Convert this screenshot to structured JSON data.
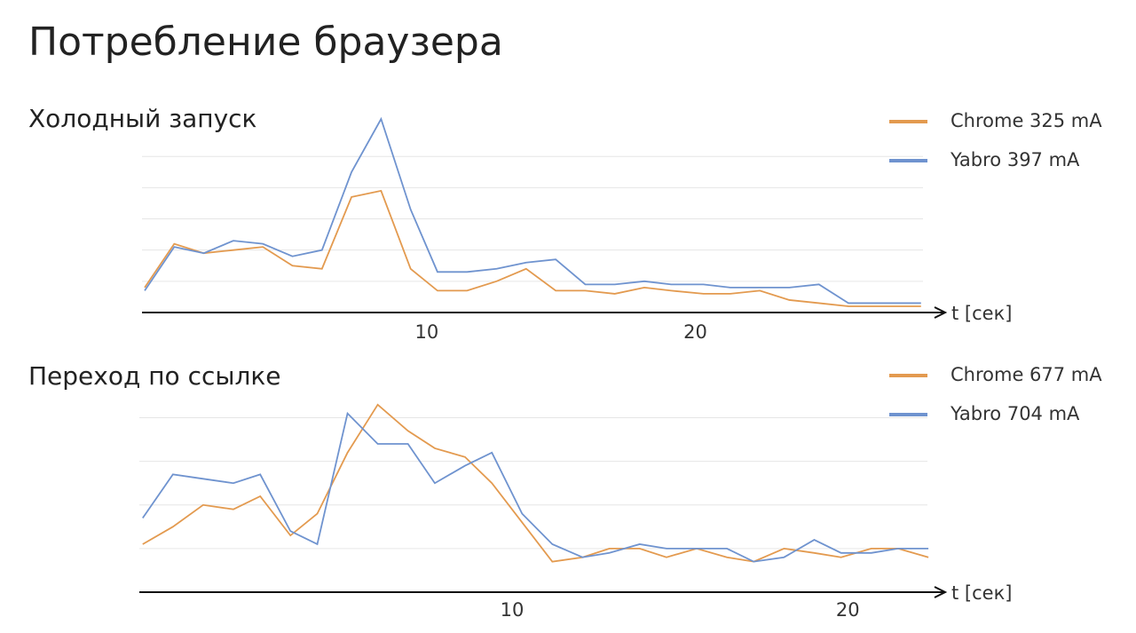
{
  "title": "Потребление браузера",
  "chart_data": [
    {
      "type": "line",
      "title": "Холодный запуск",
      "x_label": "t [сек]",
      "x": [
        -0.5,
        0.6,
        1.7,
        2.8,
        3.9,
        5.0,
        6.1,
        7.2,
        8.3,
        9.4,
        10.4,
        11.5,
        12.6,
        13.7,
        14.8,
        15.9,
        17.0,
        18.1,
        19.1,
        20.3,
        21.3,
        22.4,
        23.5,
        24.6,
        25.7,
        26.8,
        27.9,
        28.4
      ],
      "series": [
        {
          "name": "Chrome 325 mA",
          "color": "#e39a4f",
          "values": [
            0.8,
            2.2,
            1.9,
            2.0,
            2.1,
            1.5,
            1.4,
            3.7,
            3.9,
            1.4,
            0.7,
            0.7,
            1.0,
            1.4,
            0.7,
            0.7,
            0.6,
            0.8,
            0.7,
            0.6,
            0.6,
            0.7,
            0.4,
            0.3,
            0.2,
            0.2,
            0.2,
            0.2
          ]
        },
        {
          "name": "Yabro 397 mA",
          "color": "#6f93cf",
          "values": [
            0.7,
            2.1,
            1.9,
            2.3,
            2.2,
            1.8,
            2.0,
            4.5,
            6.2,
            3.3,
            1.3,
            1.3,
            1.4,
            1.6,
            1.7,
            0.9,
            0.9,
            1.0,
            0.9,
            0.9,
            0.8,
            0.8,
            0.8,
            0.9,
            0.3,
            0.3,
            0.3,
            0.3
          ]
        }
      ],
      "xlim": [
        -0.6,
        29.3
      ],
      "ylim": [
        0,
        6.2
      ],
      "xticks": [
        10,
        20
      ],
      "yticks": [
        1,
        2,
        3,
        4,
        5
      ],
      "grid": true
    },
    {
      "type": "line",
      "title": "Переход по ссылке",
      "x_label": "t [сек]",
      "x": [
        -1.0,
        -0.1,
        0.8,
        1.7,
        2.5,
        3.4,
        4.2,
        5.1,
        6.0,
        6.9,
        7.7,
        8.6,
        9.4,
        10.3,
        11.2,
        12.1,
        12.9,
        13.8,
        14.6,
        15.5,
        16.4,
        17.2,
        18.1,
        19.0,
        19.8,
        20.7,
        21.5,
        22.4
      ],
      "series": [
        {
          "name": "Chrome 677 mA",
          "color": "#e39a4f",
          "values": [
            1.1,
            1.5,
            2.0,
            1.9,
            2.2,
            1.3,
            1.8,
            3.2,
            4.3,
            3.7,
            3.3,
            3.1,
            2.5,
            1.6,
            0.7,
            0.8,
            1.0,
            1.0,
            0.8,
            1.0,
            0.8,
            0.7,
            1.0,
            0.9,
            0.8,
            1.0,
            1.0,
            0.8
          ]
        },
        {
          "name": "Yabro 704 mA",
          "color": "#6f93cf",
          "values": [
            1.7,
            2.7,
            2.6,
            2.5,
            2.7,
            1.4,
            1.1,
            4.1,
            3.4,
            3.4,
            2.5,
            2.9,
            3.2,
            1.8,
            1.1,
            0.8,
            0.9,
            1.1,
            1.0,
            1.0,
            1.0,
            0.7,
            0.8,
            1.2,
            0.9,
            0.9,
            1.0,
            1.0
          ]
        }
      ],
      "xlim": [
        -1.1,
        22.9
      ],
      "ylim": [
        0,
        4.5
      ],
      "xticks": [
        10,
        20
      ],
      "yticks": [
        1,
        2,
        3,
        4
      ],
      "grid": true
    }
  ]
}
